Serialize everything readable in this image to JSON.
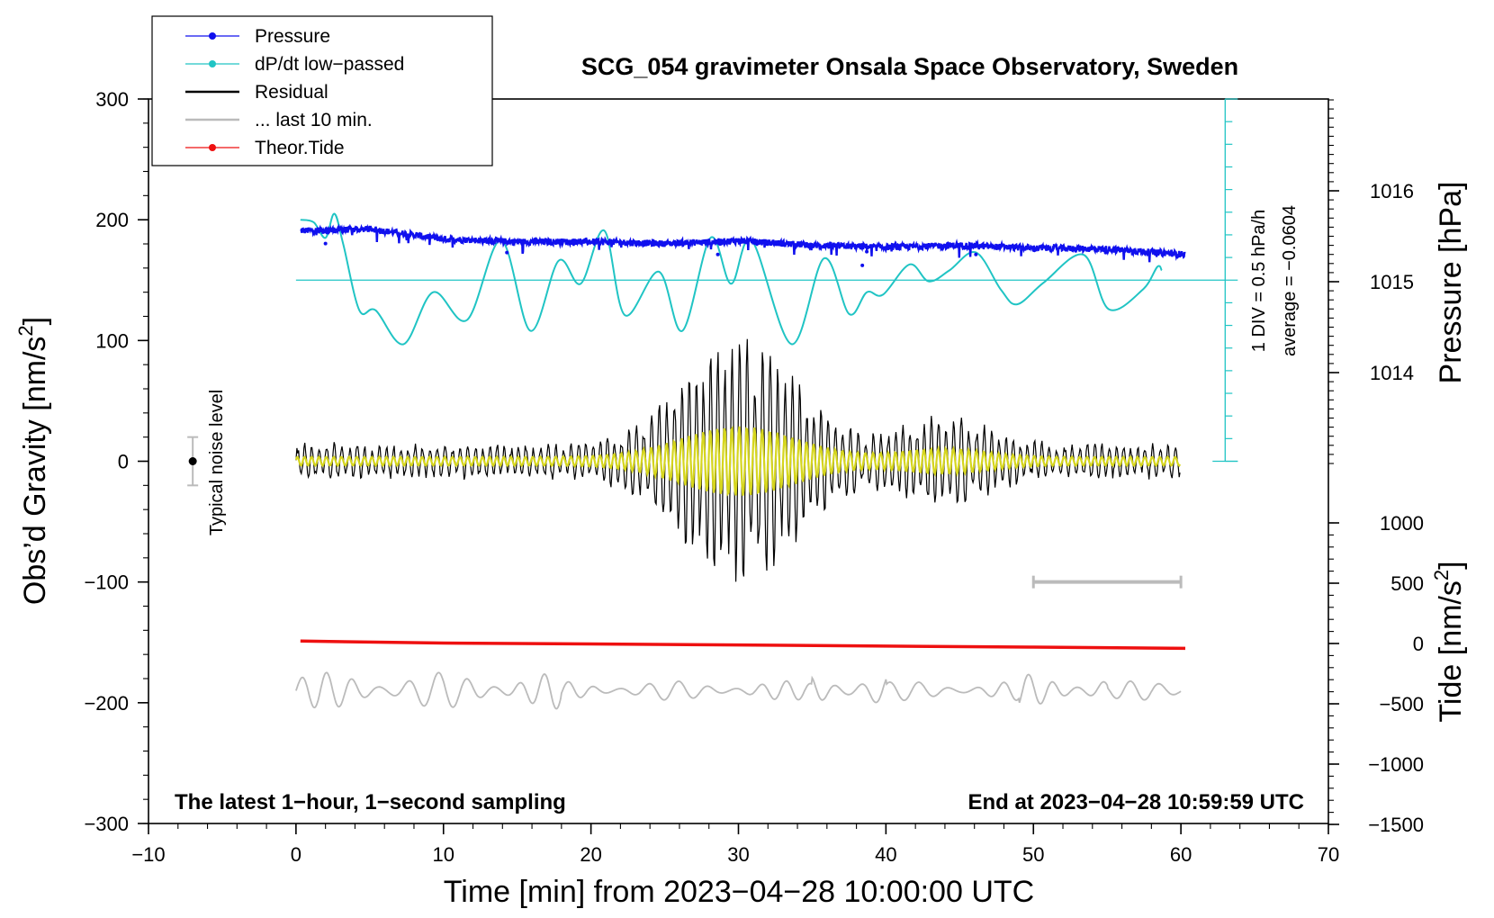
{
  "chart_data": {
    "type": "line",
    "title": "SCG_054 gravimeter Onsala Space Observatory, Sweden",
    "xlabel": "Time [min] from 2023−04−28 10:00:00 UTC",
    "ylabel": "Obs’d Gravity [nm/s",
    "ylabel_sup": "2",
    "ylabel_end": "]",
    "y2label": "Pressure [hPa]",
    "y3label": "Tide [nm/s",
    "y3label_sup": "2",
    "y3label_end": "]",
    "xlim": [
      -10,
      70
    ],
    "ylim": [
      -300,
      300
    ],
    "pressure_ylim": [
      1013,
      1017
    ],
    "tide_ylim": [
      -1500,
      1000
    ],
    "x_ticks": [
      "−10",
      "0",
      "10",
      "20",
      "30",
      "40",
      "50",
      "60",
      "70"
    ],
    "y_ticks": [
      "300",
      "200",
      "100",
      "0",
      "−100",
      "−200",
      "−300"
    ],
    "pressure_ticks": [
      "1016",
      "1015",
      "1014"
    ],
    "tide_ticks": [
      "1000",
      "500",
      "0",
      "−500",
      "−1000",
      "−1500"
    ],
    "legend": [
      {
        "label": "Pressure",
        "color": "#1010ee",
        "marker": "dot"
      },
      {
        "label": "dP/dt low−passed",
        "color": "#20c4c4",
        "marker": "dot"
      },
      {
        "label": "Residual",
        "color": "#000000",
        "marker": "line"
      },
      {
        "label": "... last 10 min.",
        "color": "#bbbbbb",
        "marker": "line"
      },
      {
        "label": "Theor.Tide",
        "color": "#ee1010",
        "marker": "dot"
      }
    ],
    "footer_left": "The latest 1−hour, 1−second sampling",
    "footer_right": "End at 2023−04−28 10:59:59 UTC",
    "noise_label": "Typical noise level",
    "noise_level": {
      "x": -7,
      "y": 0,
      "half_range": 20
    },
    "dpdt_scale_text": "1 DIV = 0.5 hPa/h",
    "dpdt_average_text": "average = −0.0604",
    "dpdt_scale": {
      "x": 63,
      "zero_y": 150,
      "top_y": 300,
      "bottom_y": 0,
      "divisions": 16
    },
    "last10_bar": {
      "x_start": 50,
      "x_end": 60,
      "y": -100
    },
    "series": [
      {
        "name": "Pressure",
        "color": "#1010ee",
        "x_range": [
          0.3,
          60.3
        ],
        "points": [
          [
            0.3,
            1015.56
          ],
          [
            5,
            1015.58
          ],
          [
            10,
            1015.47
          ],
          [
            15,
            1015.44
          ],
          [
            20,
            1015.44
          ],
          [
            25,
            1015.42
          ],
          [
            30,
            1015.45
          ],
          [
            35,
            1015.4
          ],
          [
            40,
            1015.38
          ],
          [
            45,
            1015.4
          ],
          [
            50,
            1015.37
          ],
          [
            55,
            1015.36
          ],
          [
            60.3,
            1015.3
          ]
        ]
      },
      {
        "name": "dP/dt low-passed",
        "color": "#20c4c4",
        "points": [
          [
            0.3,
            200
          ],
          [
            1.2,
            198
          ],
          [
            2.0,
            185
          ],
          [
            2.6,
            205
          ],
          [
            3.2,
            180
          ],
          [
            4.3,
            125
          ],
          [
            5.4,
            125
          ],
          [
            7.3,
            97
          ],
          [
            9.3,
            140
          ],
          [
            11.6,
            117
          ],
          [
            13.9,
            183
          ],
          [
            15.9,
            108
          ],
          [
            17.8,
            166
          ],
          [
            19.3,
            147
          ],
          [
            20.9,
            191
          ],
          [
            22.3,
            121
          ],
          [
            24.6,
            157
          ],
          [
            26.2,
            108
          ],
          [
            28.1,
            185
          ],
          [
            29.5,
            147
          ],
          [
            30.9,
            183
          ],
          [
            33.6,
            97
          ],
          [
            35.8,
            168
          ],
          [
            37.5,
            122
          ],
          [
            38.7,
            140
          ],
          [
            39.8,
            138
          ],
          [
            41.6,
            163
          ],
          [
            42.9,
            149
          ],
          [
            44.3,
            158
          ],
          [
            46.1,
            173
          ],
          [
            47.8,
            142
          ],
          [
            48.9,
            130
          ],
          [
            50.7,
            148
          ],
          [
            53.4,
            171
          ],
          [
            55.1,
            126
          ],
          [
            57.4,
            142
          ],
          [
            58.4,
            161
          ],
          [
            58.7,
            158
          ]
        ]
      },
      {
        "name": "Residual",
        "color": "#000000",
        "x_range": [
          0,
          60
        ],
        "peak_amplitude": 112
      },
      {
        "name": "Residual low-passed",
        "color": "#d6d61e",
        "x_range": [
          0,
          60
        ]
      },
      {
        "name": "... last 10 min.",
        "color": "#bbbbbb",
        "x_range": [
          0,
          60
        ],
        "baseline": -190
      },
      {
        "name": "Theor.Tide",
        "color": "#ee1010",
        "points": [
          [
            0.3,
            20
          ],
          [
            10,
            4
          ],
          [
            20,
            -4
          ],
          [
            30,
            -12
          ],
          [
            40,
            -22
          ],
          [
            50,
            -30
          ],
          [
            60.3,
            -40
          ]
        ]
      }
    ]
  }
}
